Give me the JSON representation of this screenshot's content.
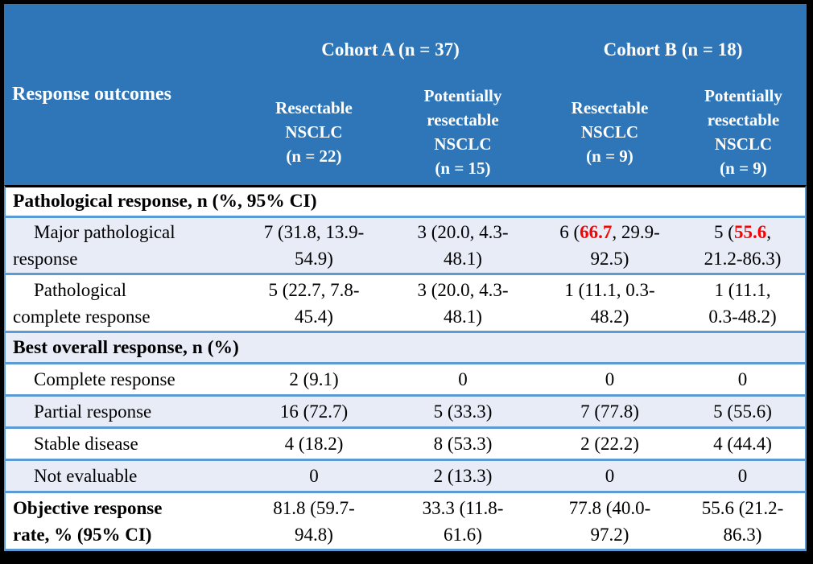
{
  "colors": {
    "header_bg": "#2F76B8",
    "header_text": "#FFFFFF",
    "row_alt_bg": "#E7ECF7",
    "row_border_blue": "#5B9BD5",
    "outer_frame": "#000000",
    "highlight_red": "#FF0000"
  },
  "header": {
    "row_label": "Response outcomes",
    "group_a": "Cohort A (n = 37)",
    "group_b": "Cohort B (n = 18)",
    "col1": "Resectable\nNSCLC\n(n = 22)",
    "col2": "Potentially\nresectable\nNSCLC\n(n = 15)",
    "col3": "Resectable\nNSCLC\n(n = 9)",
    "col4": "Potentially\nresectable\nNSCLC\n(n = 9)"
  },
  "body": {
    "section1": "Pathological response, n (%, 95% CI)",
    "mpr": {
      "label": "Major pathological\nresponse",
      "c1": "7 (31.8, 13.9-\n54.9)",
      "c2": "3 (20.0, 4.3-\n48.1)",
      "c3pre": "6 (",
      "c3red": "66.7",
      "c3post": ", 29.9-\n92.5)",
      "c4pre": "5 (",
      "c4red": "55.6",
      "c4post": ",\n21.2-86.3)"
    },
    "pcr": {
      "label": "Pathological\ncomplete response",
      "c1": "5 (22.7, 7.8-\n45.4)",
      "c2": "3 (20.0, 4.3-\n48.1)",
      "c3": "1 (11.1, 0.3-\n48.2)",
      "c4": "1 (11.1,\n0.3-48.2)"
    },
    "section2": "Best overall response, n (%)",
    "cr": {
      "label": "Complete response",
      "c1": "2 (9.1)",
      "c2": "0",
      "c3": "0",
      "c4": "0"
    },
    "pr": {
      "label": "Partial response",
      "c1": "16 (72.7)",
      "c2": "5 (33.3)",
      "c3": "7 (77.8)",
      "c4": "5 (55.6)"
    },
    "sd": {
      "label": "Stable disease",
      "c1": "4 (18.2)",
      "c2": "8 (53.3)",
      "c3": "2 (22.2)",
      "c4": "4 (44.4)"
    },
    "ne": {
      "label": "Not evaluable",
      "c1": "0",
      "c2": "2 (13.3)",
      "c3": "0",
      "c4": "0"
    },
    "orr": {
      "label": "Objective response\nrate, % (95% CI)",
      "c1": "81.8 (59.7-\n94.8)",
      "c2": "33.3 (11.8-\n61.6)",
      "c3": "77.8 (40.0-\n97.2)",
      "c4": "55.6 (21.2-\n86.3)"
    }
  },
  "chart_data": {
    "type": "table",
    "title": "Response outcomes",
    "column_groups": [
      "Cohort A (n = 37)",
      "Cohort B (n = 18)"
    ],
    "columns": [
      "Response outcomes",
      "Cohort A — Resectable NSCLC (n = 22)",
      "Cohort A — Potentially resectable NSCLC (n = 15)",
      "Cohort B — Resectable NSCLC (n = 9)",
      "Cohort B — Potentially resectable NSCLC (n = 9)"
    ],
    "rows": [
      [
        "Pathological response, n (%, 95% CI)",
        "",
        "",
        "",
        ""
      ],
      [
        "Major pathological response",
        "7 (31.8, 13.9-54.9)",
        "3 (20.0, 4.3-48.1)",
        "6 (66.7, 29.9-92.5)",
        "5 (55.6, 21.2-86.3)"
      ],
      [
        "Pathological complete response",
        "5 (22.7, 7.8-45.4)",
        "3 (20.0, 4.3-48.1)",
        "1 (11.1, 0.3-48.2)",
        "1 (11.1, 0.3-48.2)"
      ],
      [
        "Best overall response, n (%)",
        "",
        "",
        "",
        ""
      ],
      [
        "Complete response",
        "2 (9.1)",
        "0",
        "0",
        "0"
      ],
      [
        "Partial response",
        "16 (72.7)",
        "5 (33.3)",
        "7 (77.8)",
        "5 (55.6)"
      ],
      [
        "Stable disease",
        "4 (18.2)",
        "8 (53.3)",
        "2 (22.2)",
        "4 (44.4)"
      ],
      [
        "Not evaluable",
        "0",
        "2 (13.3)",
        "0",
        "0"
      ],
      [
        "Objective response rate, % (95% CI)",
        "81.8 (59.7-94.8)",
        "33.3 (11.8-61.6)",
        "77.8 (40.0-97.2)",
        "55.6 (21.2-86.3)"
      ]
    ],
    "highlighted_values_red": [
      "66.7",
      "55.6"
    ]
  }
}
